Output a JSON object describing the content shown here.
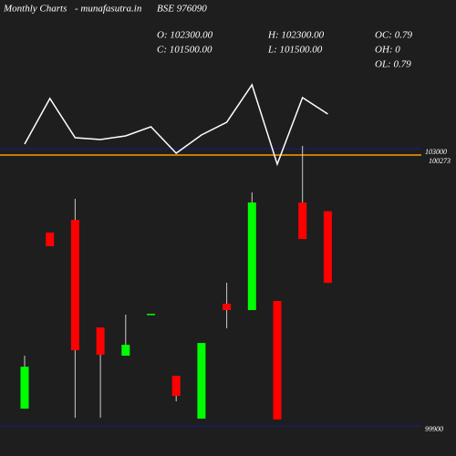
{
  "chart_data": {
    "type": "candlestick",
    "title": "Monthly Charts",
    "source": "- munafasutra.in",
    "symbol": "BSE 976090",
    "stats": [
      {
        "label": "O: 102300.00"
      },
      {
        "label": "H: 102300.00"
      },
      {
        "label": "OC: 0.79"
      },
      {
        "label": "C: 101500.00"
      },
      {
        "label": "L: 101500.00"
      },
      {
        "label": "OH: 0"
      },
      {
        "label": "OL: 0.79"
      }
    ],
    "level_label": "100273",
    "open": [
      100093,
      102062,
      102204,
      101001,
      100685,
      101154,
      100460,
      99981,
      101266,
      101195,
      101297,
      102398,
      102300
    ],
    "high": [
      100685,
      102062,
      102439,
      101001,
      101144,
      101154,
      100460,
      100827,
      101501,
      102510,
      101297,
      103031,
      102300
    ],
    "low": [
      100093,
      101909,
      99991,
      99991,
      100685,
      101154,
      100175,
      99981,
      100991,
      101195,
      99971,
      101990,
      101500
    ],
    "close": [
      100562,
      101909,
      100746,
      100695,
      100807,
      101154,
      100236,
      100827,
      101195,
      102398,
      99971,
      101990,
      101500
    ],
    "up_color": "#00ff00",
    "down_color": "#ff0000",
    "line": {
      "color": "#ffffff",
      "values": [
        42,
        92,
        49,
        47,
        51,
        61,
        32,
        52,
        66,
        107,
        20,
        93,
        75
      ]
    },
    "ylim": [
      99900,
      103000
    ],
    "yticks": [
      99900,
      103000
    ],
    "grid_color": "#1a1a8c"
  }
}
